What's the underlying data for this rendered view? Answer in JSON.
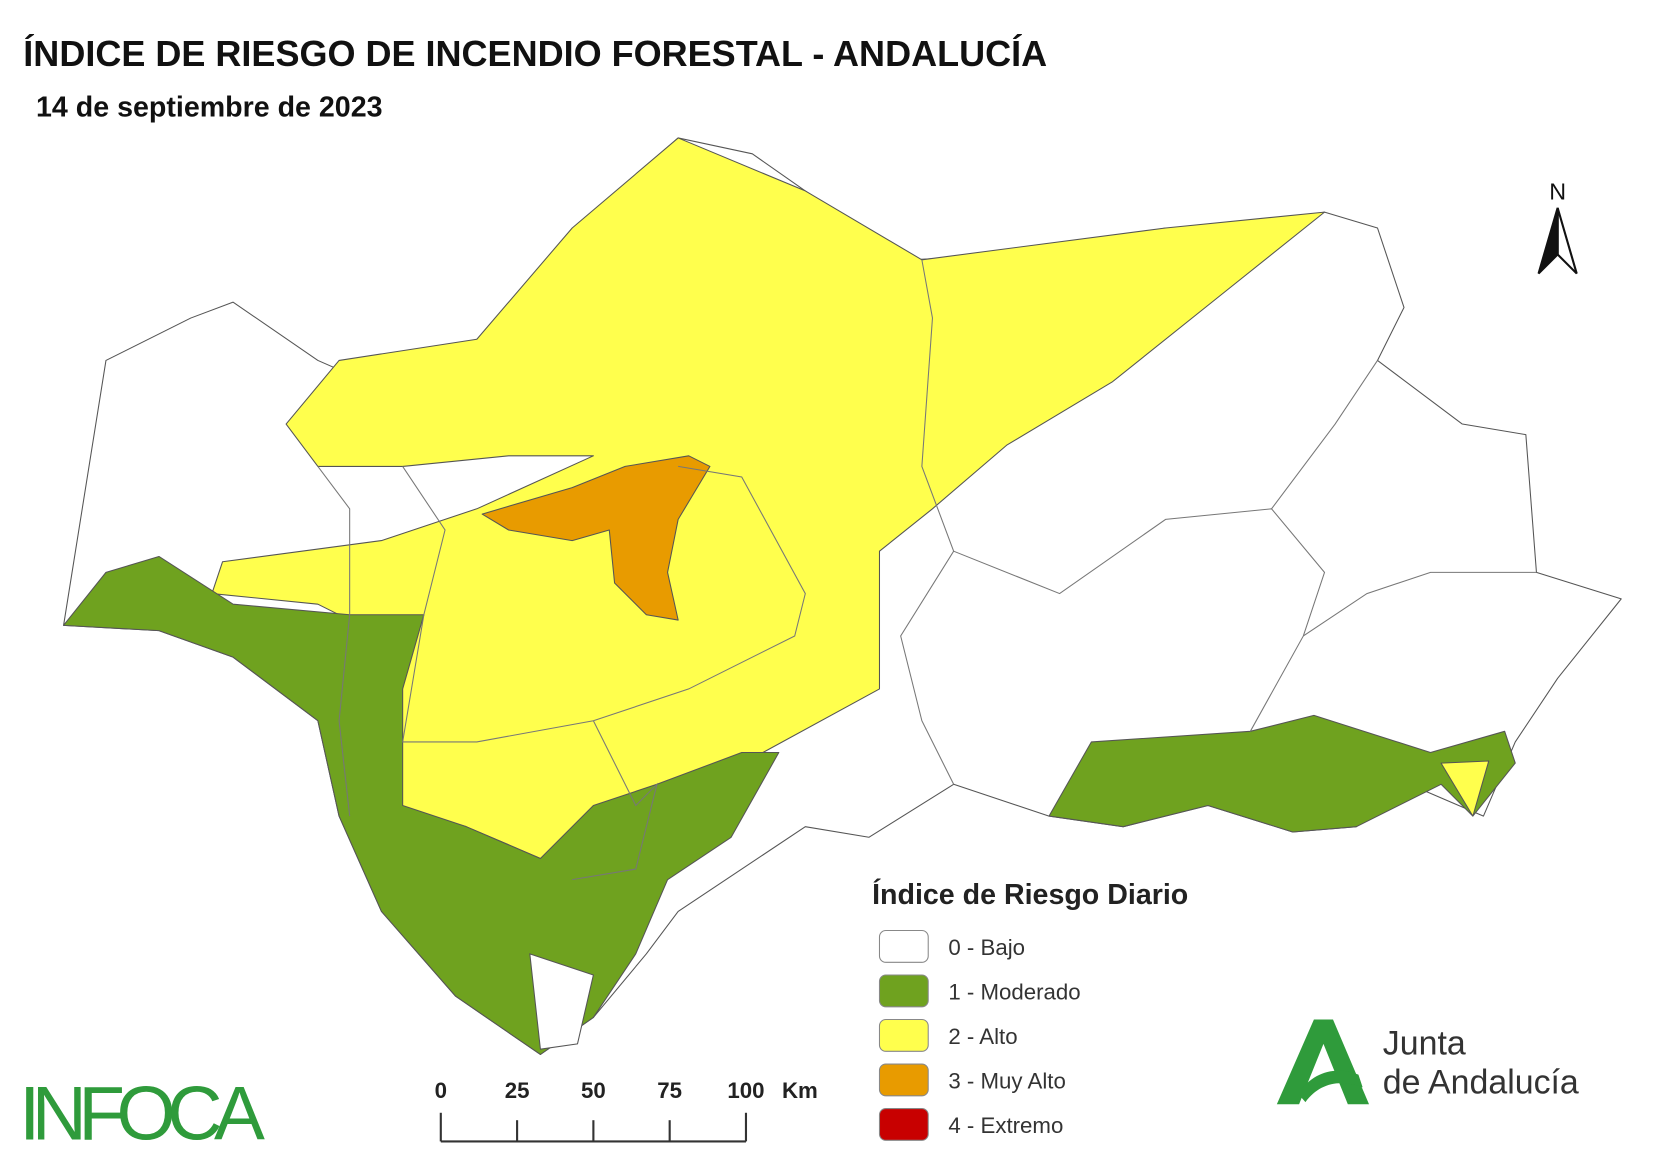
{
  "header": {
    "title": "ÍNDICE DE RIESGO DE INCENDIO FORESTAL - ANDALUCÍA",
    "subtitle": "14 de septiembre de 2023"
  },
  "north": "N",
  "legend": {
    "title": "Índice de Riesgo Diario",
    "items": [
      {
        "label": "0 - Bajo",
        "color": "#ffffff"
      },
      {
        "label": "1 - Moderado",
        "color": "#6fa21f"
      },
      {
        "label": "2 - Alto",
        "color": "#ffff4d"
      },
      {
        "label": "3 - Muy Alto",
        "color": "#e89b00"
      },
      {
        "label": "4 - Extremo",
        "color": "#c80000"
      }
    ]
  },
  "scale_bar": {
    "ticks": [
      0,
      25,
      50,
      75,
      100
    ],
    "unit": "Km"
  },
  "logos": {
    "infoca": "INFOCA",
    "junta_line1": "Junta",
    "junta_line2": "de Andalucía"
  }
}
